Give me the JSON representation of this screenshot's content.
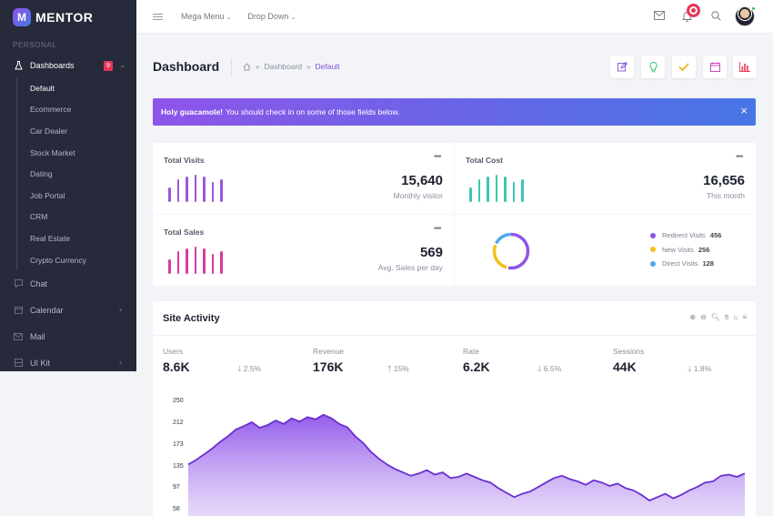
{
  "brand": {
    "logo_letter": "M",
    "name": "MENTOR"
  },
  "sidebar": {
    "section_label": "PERSONAL",
    "dashboards": {
      "label": "Dashboards",
      "badge": "9",
      "icon": "flask-icon"
    },
    "sub_items": [
      "Default",
      "Ecommerce",
      "Car Dealer",
      "Stock Market",
      "Dating",
      "Job Portal",
      "CRM",
      "Real Estate",
      "Crypto Currency"
    ],
    "items": [
      {
        "label": "Chat",
        "icon": "chat-icon"
      },
      {
        "label": "Calendar",
        "icon": "calendar-icon"
      },
      {
        "label": "Mail",
        "icon": "mail-icon"
      },
      {
        "label": "UI Kit",
        "icon": "ui-kit-icon"
      }
    ]
  },
  "topbar": {
    "menu1": "Mega Menu",
    "menu2": "Drop Down"
  },
  "page": {
    "title": "Dashboard",
    "breadcrumb": {
      "level1": "Dashboard",
      "current": "Default"
    }
  },
  "alert": {
    "strong": "Holy guacamole!",
    "text": "You should check in on some of those fields below.",
    "close": "×"
  },
  "stats": {
    "visits": {
      "title": "Total Visits",
      "value": "15,640",
      "sub": "Monthly visitor",
      "color": "#9c56d8",
      "bars": [
        0.55,
        0.85,
        0.95,
        1.0,
        0.95,
        0.75,
        0.85
      ]
    },
    "cost": {
      "title": "Total Cost",
      "value": "16,656",
      "sub": "This month",
      "color": "#3bc6b0",
      "bars": [
        0.55,
        0.85,
        0.95,
        1.0,
        0.95,
        0.75,
        0.85
      ]
    },
    "sales": {
      "title": "Total Sales",
      "value": "569",
      "sub": "Avg. Sales per day",
      "color": "#d63aa0",
      "bars": [
        0.55,
        0.85,
        0.95,
        1.0,
        0.95,
        0.75,
        0.85
      ]
    }
  },
  "donut": {
    "legend": [
      {
        "label": "Redirect Visits",
        "value": "456",
        "color": "#8e54e9"
      },
      {
        "label": "New Visits",
        "value": "256",
        "color": "#f5c01a"
      },
      {
        "label": "Direct Visits",
        "value": "128",
        "color": "#4fa8e8"
      }
    ]
  },
  "activity": {
    "title": "Site Activity",
    "metrics": [
      {
        "label": "Users",
        "value": "8.6K",
        "change": "2.5%",
        "direction": "down"
      },
      {
        "label": "Revenue",
        "value": "176K",
        "change": "15%",
        "direction": "up"
      },
      {
        "label": "Rate",
        "value": "6.2K",
        "change": "6.5%",
        "direction": "down"
      },
      {
        "label": "Sessions",
        "value": "44K",
        "change": "1.8%",
        "direction": "down"
      }
    ],
    "y_ticks": [
      "250",
      "212",
      "173",
      "135",
      "97",
      "58"
    ]
  },
  "chart_data": {
    "type": "area",
    "title": "",
    "xlabel": "",
    "ylabel": "",
    "ylim": [
      58,
      250
    ],
    "y_ticks": [
      250,
      212,
      173,
      135,
      97,
      58
    ],
    "values": [
      130,
      138,
      148,
      158,
      170,
      180,
      192,
      198,
      205,
      195,
      200,
      208,
      202,
      212,
      206,
      214,
      210,
      218,
      212,
      202,
      196,
      180,
      168,
      152,
      140,
      130,
      122,
      116,
      110,
      114,
      120,
      112,
      116,
      106,
      108,
      114,
      108,
      102,
      98,
      88,
      80,
      72,
      78,
      82,
      90,
      98,
      106,
      110,
      104,
      100,
      94,
      102,
      98,
      92,
      96,
      88,
      84,
      76,
      66,
      72,
      78,
      70,
      76,
      84,
      90,
      98,
      100,
      110,
      112,
      108,
      114
    ]
  }
}
